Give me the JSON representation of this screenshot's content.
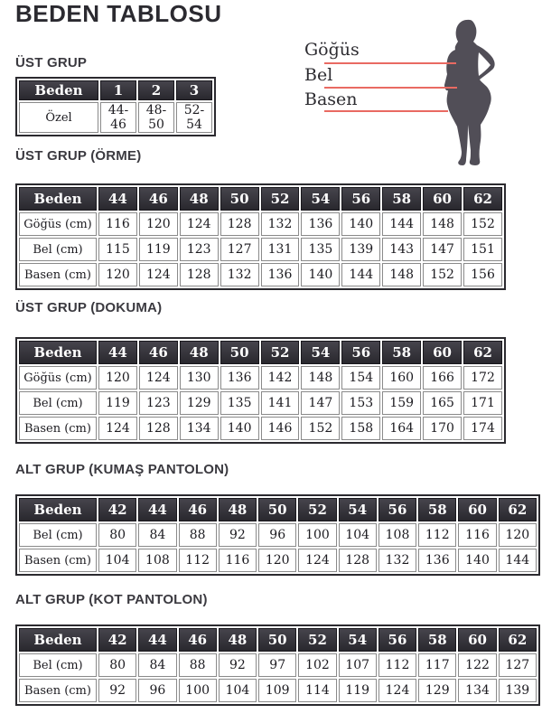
{
  "page": {
    "title": "BEDEN TABLOSU"
  },
  "theme": {
    "header_gradient_top": "#46444c",
    "header_gradient_bottom": "#29282e",
    "measure_line_color": "#e96a62",
    "silhouette_color": "#514e57",
    "text_color": "#1c1b20"
  },
  "figure": {
    "labels": [
      "Göğüs",
      "Bel",
      "Basen"
    ]
  },
  "sections": [
    {
      "heading": "ÜST GRUP",
      "table": {
        "header": [
          "Beden",
          "1",
          "2",
          "3"
        ],
        "rows": [
          [
            "Özel",
            "44-46",
            "48-50",
            "52-54"
          ]
        ]
      }
    },
    {
      "heading": "ÜST GRUP (ÖRME)",
      "table": {
        "header": [
          "Beden",
          "44",
          "46",
          "48",
          "50",
          "52",
          "54",
          "56",
          "58",
          "60",
          "62"
        ],
        "rows": [
          [
            "Göğüs (cm)",
            "116",
            "120",
            "124",
            "128",
            "132",
            "136",
            "140",
            "144",
            "148",
            "152"
          ],
          [
            "Bel (cm)",
            "115",
            "119",
            "123",
            "127",
            "131",
            "135",
            "139",
            "143",
            "147",
            "151"
          ],
          [
            "Basen (cm)",
            "120",
            "124",
            "128",
            "132",
            "136",
            "140",
            "144",
            "148",
            "152",
            "156"
          ]
        ]
      }
    },
    {
      "heading": "ÜST GRUP (DOKUMA)",
      "table": {
        "header": [
          "Beden",
          "44",
          "46",
          "48",
          "50",
          "52",
          "54",
          "56",
          "58",
          "60",
          "62"
        ],
        "rows": [
          [
            "Göğüs (cm)",
            "120",
            "124",
            "130",
            "136",
            "142",
            "148",
            "154",
            "160",
            "166",
            "172"
          ],
          [
            "Bel (cm)",
            "119",
            "123",
            "129",
            "135",
            "141",
            "147",
            "153",
            "159",
            "165",
            "171"
          ],
          [
            "Basen (cm)",
            "124",
            "128",
            "134",
            "140",
            "146",
            "152",
            "158",
            "164",
            "170",
            "174"
          ]
        ]
      }
    },
    {
      "heading": "ALT GRUP (KUMAŞ PANTOLON)",
      "table": {
        "header": [
          "Beden",
          "42",
          "44",
          "46",
          "48",
          "50",
          "52",
          "54",
          "56",
          "58",
          "60",
          "62"
        ],
        "rows": [
          [
            "Bel (cm)",
            "80",
            "84",
            "88",
            "92",
            "96",
            "100",
            "104",
            "108",
            "112",
            "116",
            "120"
          ],
          [
            "Basen (cm)",
            "104",
            "108",
            "112",
            "116",
            "120",
            "124",
            "128",
            "132",
            "136",
            "140",
            "144"
          ]
        ]
      }
    },
    {
      "heading": "ALT GRUP (KOT PANTOLON)",
      "table": {
        "header": [
          "Beden",
          "42",
          "44",
          "46",
          "48",
          "50",
          "52",
          "54",
          "56",
          "58",
          "60",
          "62"
        ],
        "rows": [
          [
            "Bel (cm)",
            "80",
            "84",
            "88",
            "92",
            "97",
            "102",
            "107",
            "112",
            "117",
            "122",
            "127"
          ],
          [
            "Basen (cm)",
            "92",
            "96",
            "100",
            "104",
            "109",
            "114",
            "119",
            "124",
            "129",
            "134",
            "139"
          ]
        ]
      }
    }
  ]
}
